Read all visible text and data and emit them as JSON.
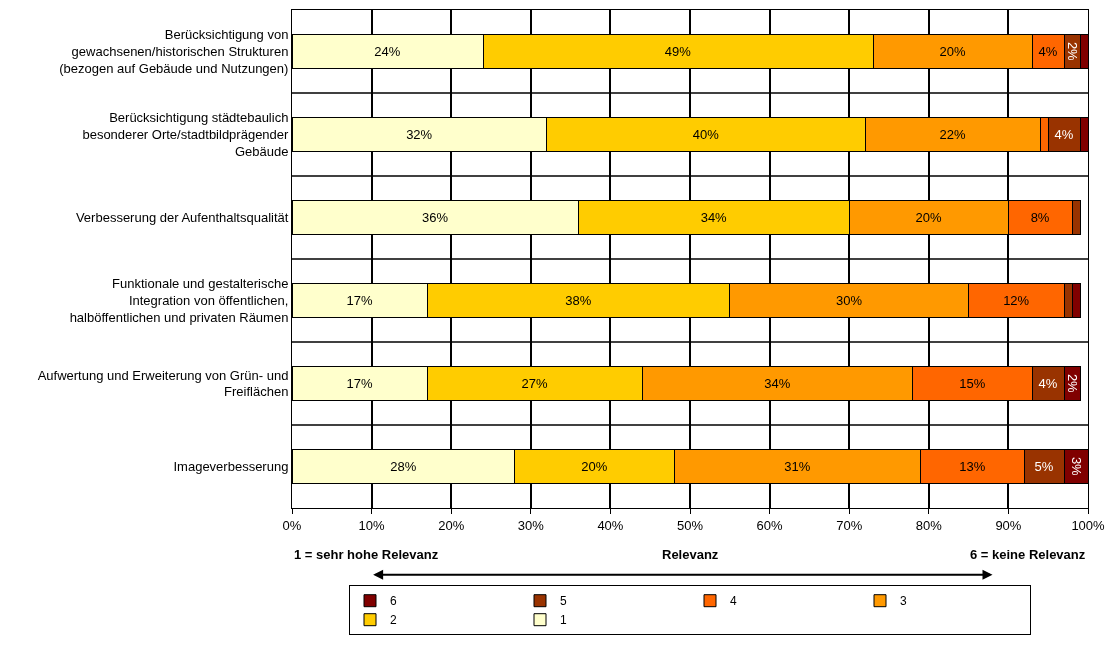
{
  "chart_data": {
    "type": "bar",
    "orientation": "horizontal",
    "stacked": true,
    "categories": [
      "Berücksichtigung von gewachsenen/historischen Strukturen (bezogen auf Gebäude und Nutzungen)",
      "Berücksichtigung städtebaulich besonderer Orte/stadtbildprägender Gebäude",
      "Verbesserung der Aufenthaltsqualität",
      "Funktionale und gestalterische Integration von öffentlichen, halböffentlichen und privaten Räumen",
      "Aufwertung und Erweiterung von Grün- und Freiflächen",
      "Imageverbesserung"
    ],
    "series": [
      {
        "name": "1",
        "color": "#ffffcc",
        "values": [
          24,
          32,
          36,
          17,
          17,
          28
        ],
        "value_labels": [
          "24%",
          "32%",
          "36%",
          "17%",
          "17%",
          "28%"
        ]
      },
      {
        "name": "2",
        "color": "#ffcc00",
        "values": [
          49,
          40,
          34,
          38,
          27,
          20
        ],
        "value_labels": [
          "49%",
          "40%",
          "34%",
          "38%",
          "27%",
          "20%"
        ]
      },
      {
        "name": "3",
        "color": "#ff9900",
        "values": [
          20,
          22,
          20,
          30,
          34,
          31
        ],
        "value_labels": [
          "20%",
          "22%",
          "20%",
          "30%",
          "34%",
          "31%"
        ]
      },
      {
        "name": "4",
        "color": "#ff6600",
        "values": [
          4,
          1,
          8,
          12,
          15,
          13
        ],
        "value_labels": [
          "4%",
          null,
          "8%",
          "12%",
          "15%",
          "13%"
        ]
      },
      {
        "name": "5",
        "color": "#993300",
        "values": [
          2,
          4,
          1,
          1,
          4,
          5
        ],
        "value_labels": [
          "2%",
          "4%",
          null,
          null,
          "4%",
          "5%"
        ]
      },
      {
        "name": "6",
        "color": "#800000",
        "values": [
          1,
          1,
          null,
          1,
          2,
          3
        ],
        "value_labels": [
          null,
          null,
          null,
          null,
          "2%",
          "3%"
        ]
      }
    ],
    "xlim": [
      0,
      100
    ],
    "xticks": [
      {
        "value": 0,
        "label": "0%"
      },
      {
        "value": 10,
        "label": "10%"
      },
      {
        "value": 20,
        "label": "20%"
      },
      {
        "value": 30,
        "label": "30%"
      },
      {
        "value": 40,
        "label": "40%"
      },
      {
        "value": 50,
        "label": "50%"
      },
      {
        "value": 60,
        "label": "60%"
      },
      {
        "value": 70,
        "label": "70%"
      },
      {
        "value": 80,
        "label": "80%"
      },
      {
        "value": 90,
        "label": "90%"
      },
      {
        "value": 100,
        "label": "100%"
      }
    ],
    "grid": true,
    "legend": "bottom",
    "annotations": [
      "1 = sehr hohe Relevanz",
      "Relevanz",
      "6 = keine Relevanz"
    ]
  }
}
